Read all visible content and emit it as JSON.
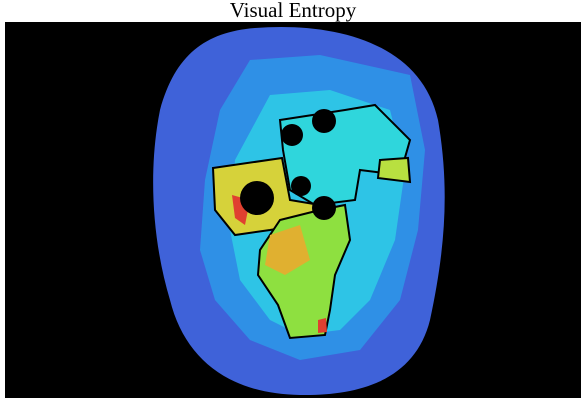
{
  "title": "Visual Entropy"
}
